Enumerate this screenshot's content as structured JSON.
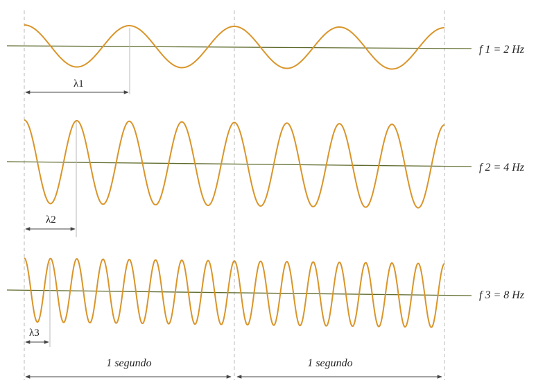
{
  "waves": [
    {
      "lambda_label": "λ1",
      "freq_label": "f 1 = 2 Hz",
      "cycles_per_second": 2
    },
    {
      "lambda_label": "λ2",
      "freq_label": "f 2 = 4 Hz",
      "cycles_per_second": 4
    },
    {
      "lambda_label": "λ3",
      "freq_label": "f 3 = 8 Hz",
      "cycles_per_second": 8
    }
  ],
  "seconds": [
    {
      "label": "1 segundo"
    },
    {
      "label": "1 segundo"
    }
  ],
  "colors": {
    "wave": "#d9952a",
    "axis": "#5e6b2c",
    "guide": "#b8b8b8",
    "arrow": "#444444"
  }
}
